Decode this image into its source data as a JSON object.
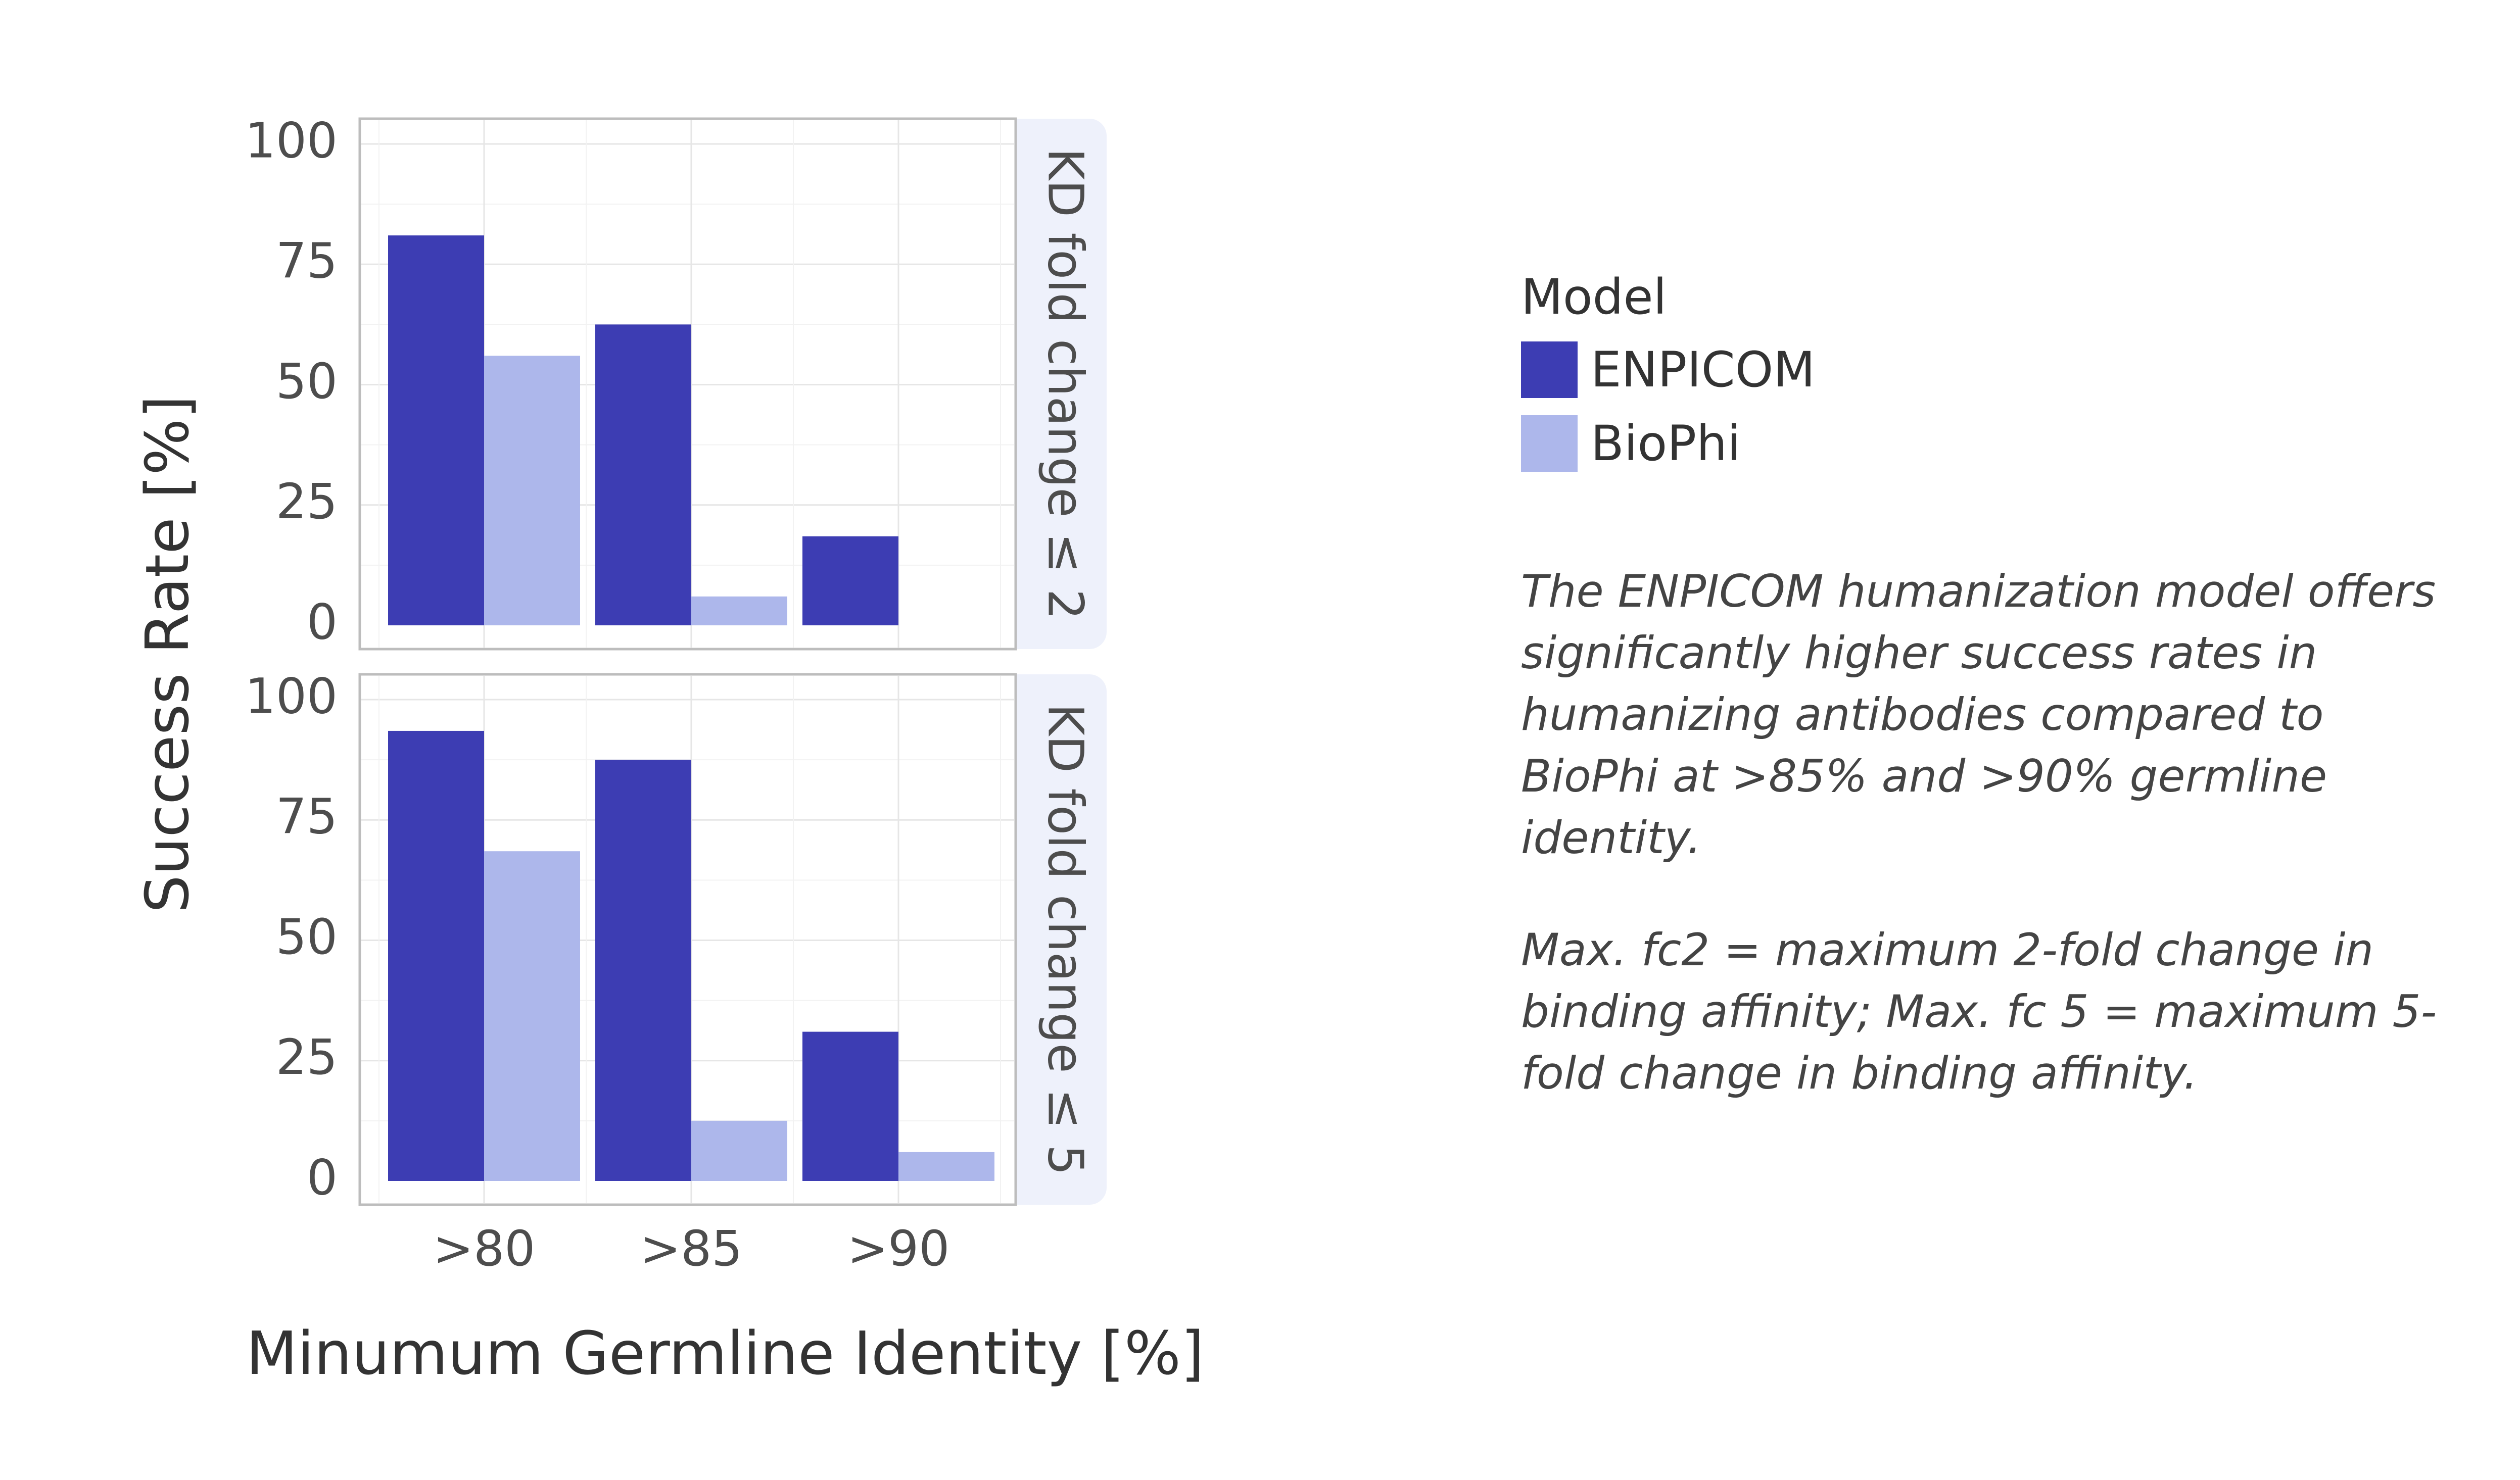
{
  "chart_data": {
    "type": "bar",
    "categories": [
      ">80",
      ">85",
      ">90"
    ],
    "xlabel": "Minumum Germline Identity [%]",
    "ylabel": "Success Rate [%]",
    "ylim": [
      0,
      100
    ],
    "yticks": [
      0,
      25,
      50,
      75,
      100
    ],
    "grid": true,
    "facets": [
      {
        "label": "KD fold change ≤ 2",
        "series": [
          {
            "name": "ENPICOM",
            "values": [
              81,
              62.5,
              18.5
            ]
          },
          {
            "name": "BioPhi",
            "values": [
              56,
              6,
              0
            ]
          }
        ]
      },
      {
        "label": "KD fold change ≤ 5",
        "series": [
          {
            "name": "ENPICOM",
            "values": [
              93.5,
              87.5,
              31
            ]
          },
          {
            "name": "BioPhi",
            "values": [
              68.5,
              12.5,
              6
            ]
          }
        ]
      }
    ],
    "colors": {
      "ENPICOM": "#3d3db3",
      "BioPhi": "#adb7eb"
    }
  },
  "legend": {
    "title": "Model",
    "items": [
      {
        "label": "ENPICOM",
        "color": "#3d3db3"
      },
      {
        "label": "BioPhi",
        "color": "#adb7eb"
      }
    ]
  },
  "notes": [
    "The ENPICOM humanization model offers significantly higher success rates in humanizing antibodies compared to BioPhi at >85% and >90% germline identity.",
    "Max. fc2 = maximum 2-fold change in binding affinity; Max. fc 5 = maximum 5-fold change in binding affinity."
  ]
}
